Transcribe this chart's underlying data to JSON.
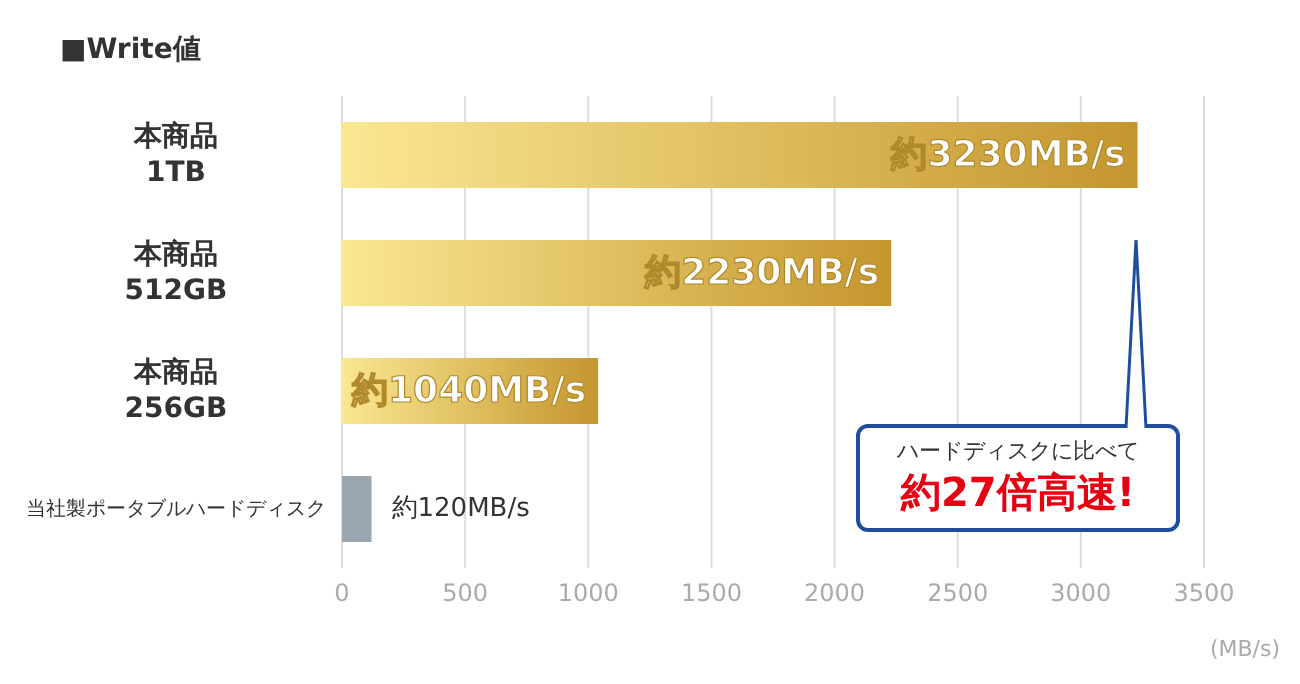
{
  "chart_data": {
    "type": "bar",
    "orientation": "horizontal",
    "title": "■Write値",
    "categories": [
      "本商品\n1TB",
      "本商品\n512GB",
      "本商品\n256GB",
      "当社製ポータブルハードディスク"
    ],
    "values": [
      3230,
      2230,
      1040,
      120
    ],
    "colors": [
      "#c4962e",
      "#c4962e",
      "#c4962e",
      "#9aa7b0"
    ],
    "value_labels": [
      "約3230MB/s",
      "約2230MB/s",
      "約1040MB/s",
      "約120MB/s"
    ],
    "xlim": [
      0,
      3500
    ],
    "xticks": [
      0,
      500,
      1000,
      1500,
      2000,
      2500,
      3000,
      3500
    ],
    "xlabel": "(MB/s)",
    "grid": "x",
    "annotations": [
      "ハードディスクに比べて",
      "約27倍高速!"
    ]
  }
}
